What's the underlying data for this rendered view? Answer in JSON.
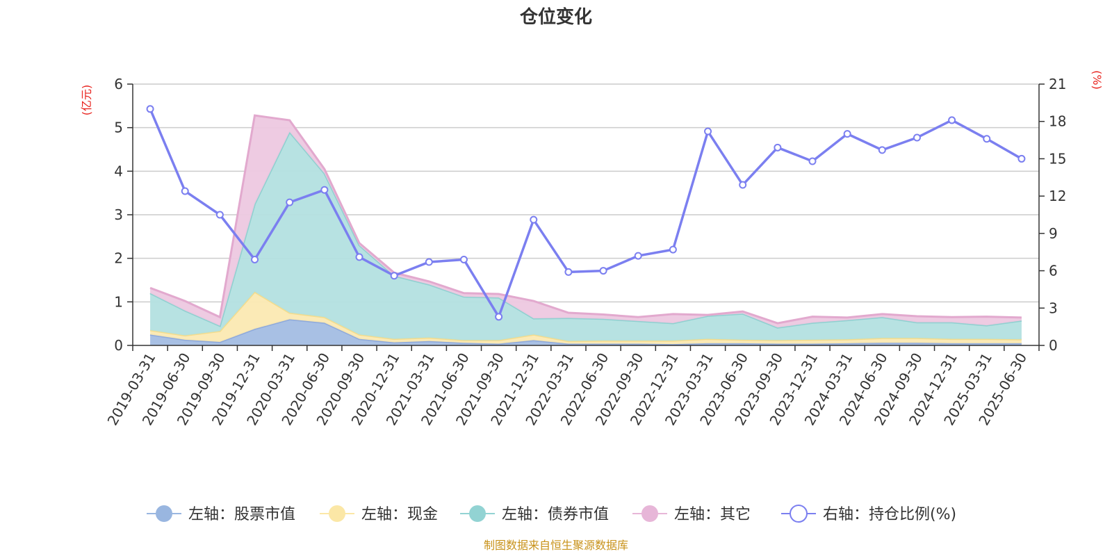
{
  "chart_data": {
    "type": "area",
    "title": "仓位变化",
    "left_unit": "(亿元)",
    "right_unit": "(%)",
    "source": "制图数据来自恒生聚源数据库",
    "x": [
      "2019-03-31",
      "2019-06-30",
      "2019-09-30",
      "2019-12-31",
      "2020-03-31",
      "2020-06-30",
      "2020-09-30",
      "2020-12-31",
      "2021-03-31",
      "2021-06-30",
      "2021-09-30",
      "2021-12-31",
      "2022-03-31",
      "2022-06-30",
      "2022-09-30",
      "2022-12-31",
      "2023-03-31",
      "2023-06-30",
      "2023-09-30",
      "2023-12-31",
      "2024-03-31",
      "2024-06-30",
      "2024-09-30",
      "2024-12-31",
      "2025-03-31",
      "2025-06-30"
    ],
    "left_axis": {
      "min": 0,
      "max": 6,
      "ticks": [
        0,
        1,
        2,
        3,
        4,
        5,
        6
      ]
    },
    "right_axis": {
      "min": 0,
      "max": 21,
      "ticks": [
        0,
        3,
        6,
        9,
        12,
        15,
        18,
        21
      ]
    },
    "grid": true,
    "legend_position": "bottom",
    "series": [
      {
        "name": "左轴：股票市值",
        "axis": "left",
        "kind": "stacked-area",
        "color": "#a3bde3",
        "values": [
          0.25,
          0.13,
          0.08,
          0.38,
          0.6,
          0.52,
          0.15,
          0.07,
          0.1,
          0.06,
          0.04,
          0.12,
          0.04,
          0.04,
          0.04,
          0.03,
          0.05,
          0.05,
          0.04,
          0.04,
          0.05,
          0.06,
          0.06,
          0.05,
          0.05,
          0.05
        ]
      },
      {
        "name": "左轴：现金",
        "axis": "left",
        "kind": "stacked-area",
        "color": "#fbe9b2",
        "values": [
          0.1,
          0.1,
          0.25,
          0.85,
          0.15,
          0.13,
          0.1,
          0.08,
          0.08,
          0.06,
          0.08,
          0.13,
          0.06,
          0.07,
          0.07,
          0.08,
          0.1,
          0.08,
          0.08,
          0.09,
          0.09,
          0.11,
          0.11,
          0.1,
          0.1,
          0.09
        ]
      },
      {
        "name": "左轴：债券市值",
        "axis": "left",
        "kind": "stacked-area",
        "color": "#b3e0e0",
        "values": [
          0.85,
          0.57,
          0.12,
          2.02,
          4.15,
          3.3,
          2.05,
          1.45,
          1.22,
          1.0,
          0.98,
          0.37,
          0.53,
          0.5,
          0.45,
          0.4,
          0.53,
          0.6,
          0.29,
          0.39,
          0.44,
          0.48,
          0.36,
          0.38,
          0.31,
          0.43
        ]
      },
      {
        "name": "左轴：其它",
        "axis": "left",
        "kind": "stacked-area",
        "color": "#edc8e0",
        "values": [
          0.12,
          0.22,
          0.2,
          2.03,
          0.27,
          0.1,
          0.05,
          0.07,
          0.07,
          0.08,
          0.08,
          0.4,
          0.12,
          0.1,
          0.09,
          0.21,
          0.02,
          0.05,
          0.1,
          0.14,
          0.06,
          0.07,
          0.14,
          0.12,
          0.2,
          0.07
        ]
      },
      {
        "name": "右轴：持仓比例(%)",
        "axis": "right",
        "kind": "line",
        "color": "#7b7ff0",
        "values": [
          19.0,
          12.4,
          10.5,
          6.9,
          11.5,
          12.5,
          7.1,
          5.6,
          6.7,
          6.9,
          2.3,
          10.1,
          5.9,
          6.0,
          7.2,
          7.7,
          17.2,
          12.9,
          15.9,
          14.8,
          17.0,
          15.7,
          16.7,
          18.1,
          16.6,
          15.0
        ]
      }
    ]
  }
}
